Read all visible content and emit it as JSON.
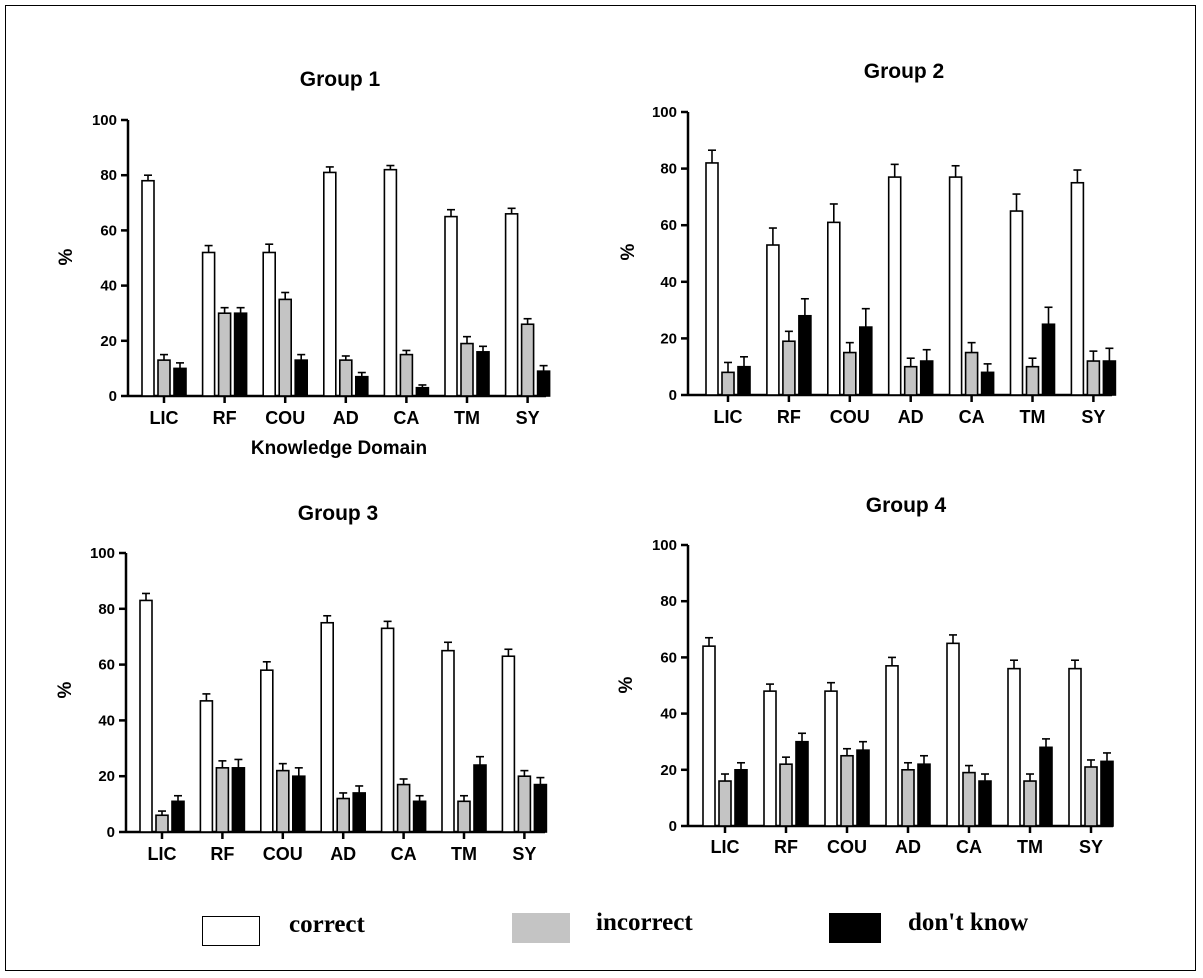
{
  "chart_data": [
    {
      "type": "bar",
      "title": "Group 1",
      "xlabel": "Knowledge Domain",
      "ylabel": "%",
      "ylim": [
        0,
        100
      ],
      "yticks": [
        0,
        20,
        40,
        60,
        80,
        100
      ],
      "categories": [
        "LIC",
        "RF",
        "COU",
        "AD",
        "CA",
        "TM",
        "SY"
      ],
      "series": [
        {
          "name": "correct",
          "values": [
            78,
            52,
            52,
            81,
            82,
            65,
            66
          ],
          "errors": [
            2,
            2.5,
            3,
            2,
            1.5,
            2.5,
            2
          ]
        },
        {
          "name": "incorrect",
          "values": [
            13,
            30,
            35,
            13,
            15,
            19,
            26
          ],
          "errors": [
            2,
            2,
            2.5,
            1.5,
            1.5,
            2.5,
            2
          ]
        },
        {
          "name": "don't know",
          "values": [
            10,
            30,
            13,
            7,
            3,
            16,
            9
          ],
          "errors": [
            2,
            2,
            2,
            1.5,
            1,
            2,
            2
          ]
        }
      ]
    },
    {
      "type": "bar",
      "title": "Group 2",
      "xlabel": "",
      "ylabel": "%",
      "ylim": [
        0,
        100
      ],
      "yticks": [
        0,
        20,
        40,
        60,
        80,
        100
      ],
      "categories": [
        "LIC",
        "RF",
        "COU",
        "AD",
        "CA",
        "TM",
        "SY"
      ],
      "series": [
        {
          "name": "correct",
          "values": [
            82,
            53,
            61,
            77,
            77,
            65,
            75
          ],
          "errors": [
            4.5,
            6,
            6.5,
            4.5,
            4,
            6,
            4.5
          ]
        },
        {
          "name": "incorrect",
          "values": [
            8,
            19,
            15,
            10,
            15,
            10,
            12
          ],
          "errors": [
            3.5,
            3.5,
            3.5,
            3,
            3.5,
            3,
            3.5
          ]
        },
        {
          "name": "don't know",
          "values": [
            10,
            28,
            24,
            12,
            8,
            25,
            12
          ],
          "errors": [
            3.5,
            6,
            6.5,
            4,
            3,
            6,
            4.5
          ]
        }
      ]
    },
    {
      "type": "bar",
      "title": "Group 3",
      "xlabel": "",
      "ylabel": "%",
      "ylim": [
        0,
        100
      ],
      "yticks": [
        0,
        20,
        40,
        60,
        80,
        100
      ],
      "categories": [
        "LIC",
        "RF",
        "COU",
        "AD",
        "CA",
        "TM",
        "SY"
      ],
      "series": [
        {
          "name": "correct",
          "values": [
            83,
            47,
            58,
            75,
            73,
            65,
            63
          ],
          "errors": [
            2.5,
            2.5,
            3,
            2.5,
            2.5,
            3,
            2.5
          ]
        },
        {
          "name": "incorrect",
          "values": [
            6,
            23,
            22,
            12,
            17,
            11,
            20
          ],
          "errors": [
            1.5,
            2.5,
            2.5,
            2,
            2,
            2,
            2
          ]
        },
        {
          "name": "don't know",
          "values": [
            11,
            23,
            20,
            14,
            11,
            24,
            17
          ],
          "errors": [
            2,
            3,
            3,
            2.5,
            2,
            3,
            2.5
          ]
        }
      ]
    },
    {
      "type": "bar",
      "title": "Group 4",
      "xlabel": "",
      "ylabel": "%",
      "ylim": [
        0,
        100
      ],
      "yticks": [
        0,
        20,
        40,
        60,
        80,
        100
      ],
      "categories": [
        "LIC",
        "RF",
        "COU",
        "AD",
        "CA",
        "TM",
        "SY"
      ],
      "series": [
        {
          "name": "correct",
          "values": [
            64,
            48,
            48,
            57,
            65,
            56,
            56
          ],
          "errors": [
            3,
            2.5,
            3,
            3,
            3,
            3,
            3
          ]
        },
        {
          "name": "incorrect",
          "values": [
            16,
            22,
            25,
            20,
            19,
            16,
            21
          ],
          "errors": [
            2.5,
            2.5,
            2.5,
            2.5,
            2.5,
            2.5,
            2.5
          ]
        },
        {
          "name": "don't know",
          "values": [
            20,
            30,
            27,
            22,
            16,
            28,
            23
          ],
          "errors": [
            2.5,
            3,
            3,
            3,
            2.5,
            3,
            3
          ]
        }
      ]
    }
  ],
  "legend": {
    "items": [
      {
        "label": "correct",
        "color": "#ffffff"
      },
      {
        "label": "incorrect",
        "color": "#c4c4c4"
      },
      {
        "label": "don't know",
        "color": "#000000"
      }
    ]
  },
  "colors": {
    "correct": "#ffffff",
    "incorrect": "#c4c4c4",
    "dont_know": "#000000",
    "stroke": "#000000"
  }
}
